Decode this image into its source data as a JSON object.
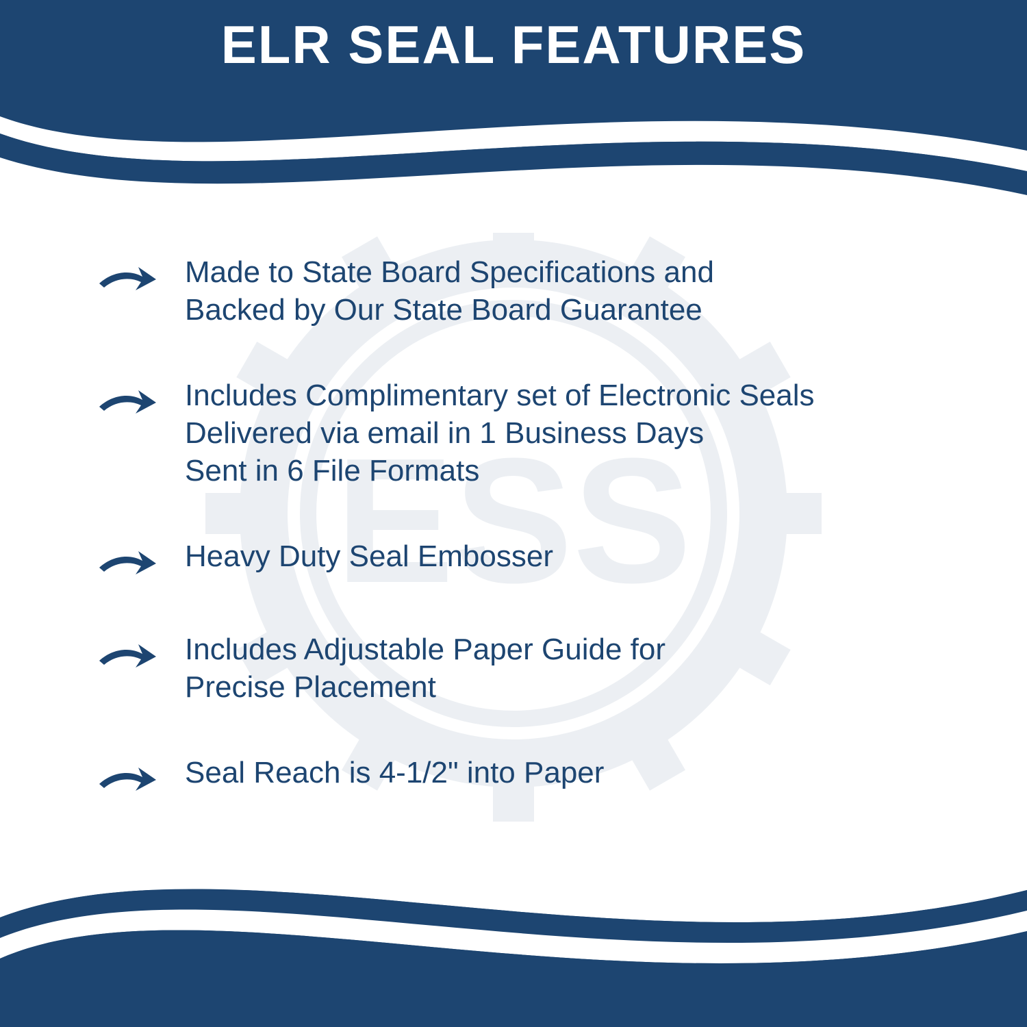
{
  "title": "ELR SEAL FEATURES",
  "colors": {
    "primary": "#1d4571",
    "background": "#ffffff",
    "text": "#1d4571",
    "watermark": "#d9dde2"
  },
  "watermark_text": "ESS",
  "features": [
    {
      "lines": [
        "Made to State Board Specifications and",
        "Backed by Our State Board Guarantee"
      ]
    },
    {
      "lines": [
        "Includes Complimentary set of Electronic Seals",
        "Delivered via email in 1 Business Days",
        "Sent in 6 File Formats"
      ]
    },
    {
      "lines": [
        "Heavy Duty Seal Embosser"
      ]
    },
    {
      "lines": [
        "Includes Adjustable Paper Guide for",
        "Precise Placement"
      ]
    },
    {
      "lines": [
        "Seal Reach is 4-1/2\" into Paper"
      ]
    }
  ],
  "typography": {
    "title_fontsize": 78,
    "title_weight": 700,
    "body_fontsize": 44,
    "body_weight": 500
  }
}
